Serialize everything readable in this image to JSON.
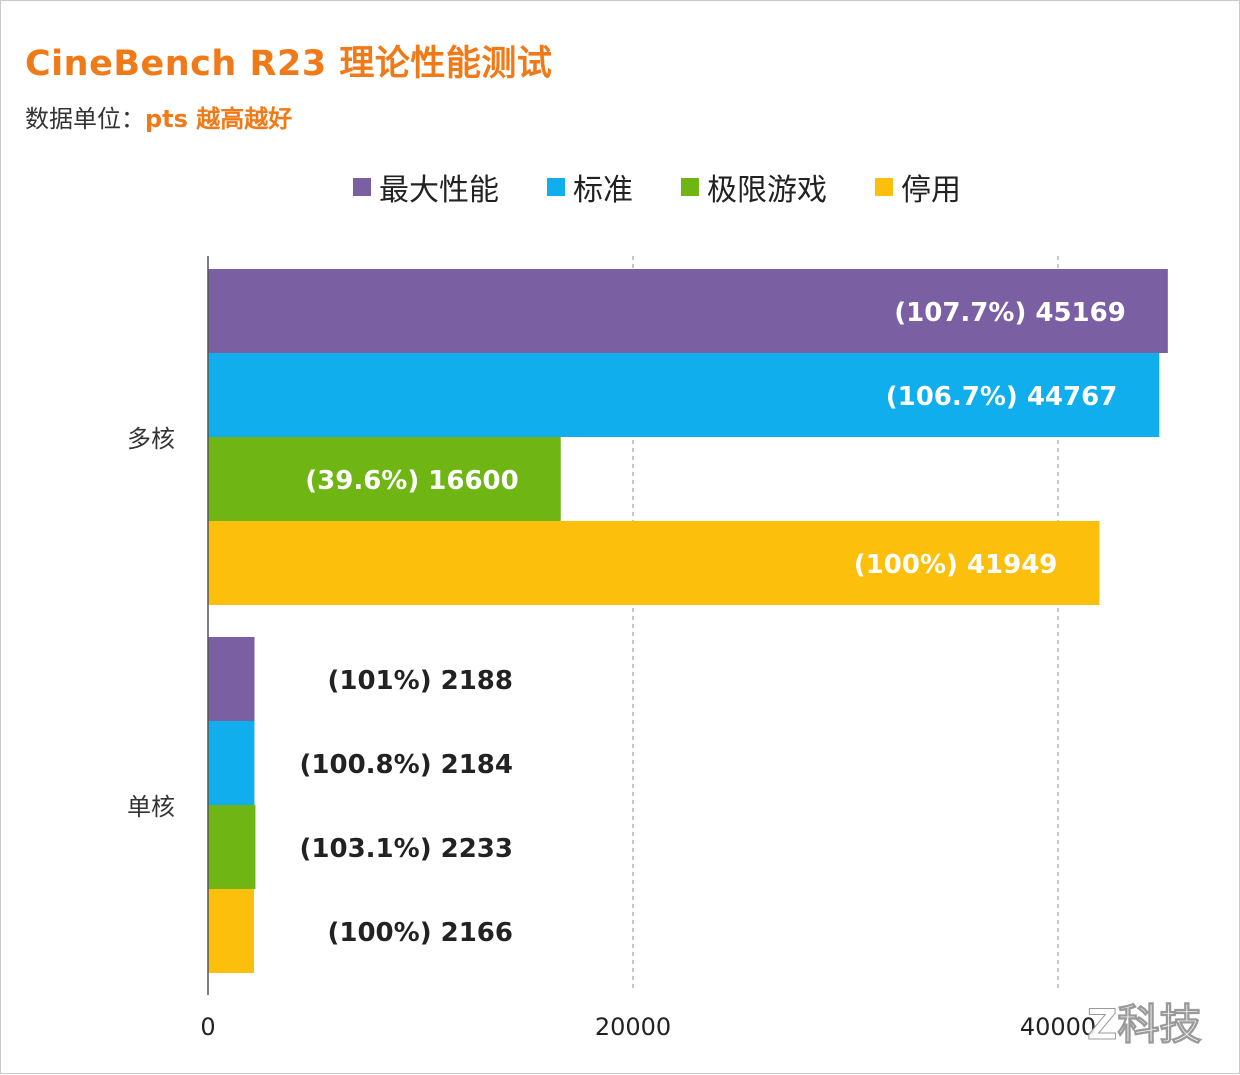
{
  "title": "CineBench R23 理论性能测试",
  "subtitle": {
    "prefix": "数据单位：",
    "value": "pts 越高越好"
  },
  "watermark": "Z科技",
  "colors": {
    "title_accent": "#f07a18",
    "series": [
      "#7b5fa3",
      "#10aeed",
      "#6fb614",
      "#fbbf0c"
    ]
  },
  "chart_data": {
    "type": "bar",
    "orientation": "horizontal",
    "categories": [
      "多核",
      "单核"
    ],
    "series": [
      {
        "name": "最大性能",
        "values": [
          45169,
          2188
        ],
        "labels": [
          "(107.7%) 45169",
          "(101%) 2188"
        ]
      },
      {
        "name": "标准",
        "values": [
          44767,
          2184
        ],
        "labels": [
          "(106.7%) 44767",
          "(100.8%) 2184"
        ]
      },
      {
        "name": "极限游戏",
        "values": [
          16600,
          2233
        ],
        "labels": [
          "(39.6%) 16600",
          "(103.1%) 2233"
        ]
      },
      {
        "name": "停用",
        "values": [
          41949,
          2166
        ],
        "labels": [
          "(100%) 41949",
          "(100%) 2166"
        ]
      }
    ],
    "x_ticks": [
      "0",
      "20000",
      "40000"
    ],
    "xlim": [
      0,
      45169
    ],
    "grid": "vertical dashed at 20000 and 40000",
    "legend_position": "top"
  }
}
